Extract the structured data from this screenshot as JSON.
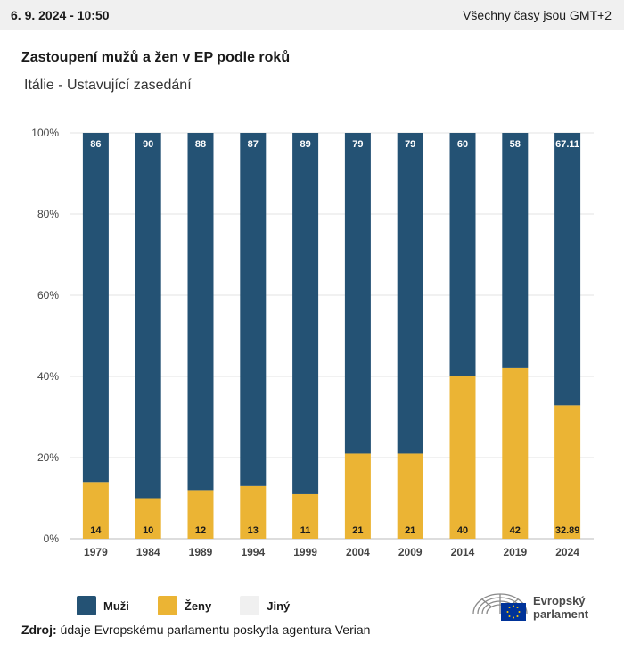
{
  "header": {
    "date": "6. 9. 2024 - 10:50",
    "timezone_note": "Všechny časy jsou GMT+2"
  },
  "title": "Zastoupení mužů a žen v EP podle roků",
  "subtitle": "Itálie - Ustavující zasedání",
  "chart_data": {
    "type": "bar",
    "stacked": true,
    "categories": [
      "1979",
      "1984",
      "1989",
      "1994",
      "1999",
      "2004",
      "2009",
      "2014",
      "2019",
      "2024"
    ],
    "series": [
      {
        "name": "Ženy",
        "color": "#ebb434",
        "values": [
          14,
          10,
          12,
          13,
          11,
          21,
          21,
          40,
          42,
          32.89
        ],
        "labels": [
          "14",
          "10",
          "12",
          "13",
          "11",
          "21",
          "21",
          "40",
          "42",
          "32.89"
        ]
      },
      {
        "name": "Muži",
        "color": "#245274",
        "values": [
          86,
          90,
          88,
          87,
          89,
          79,
          79,
          60,
          58,
          67.11
        ],
        "labels": [
          "86",
          "90",
          "88",
          "87",
          "89",
          "79",
          "79",
          "60",
          "58",
          "67.11"
        ]
      },
      {
        "name": "Jiný",
        "color": "#f0f0f0",
        "values": [
          0,
          0,
          0,
          0,
          0,
          0,
          0,
          0,
          0,
          0
        ]
      }
    ],
    "ylim": [
      0,
      100
    ],
    "yticks": [
      "0%",
      "20%",
      "40%",
      "60%",
      "80%",
      "100%"
    ],
    "grid": true,
    "legend_position": "bottom-left"
  },
  "legend": [
    {
      "label": "Muži",
      "color": "#245274"
    },
    {
      "label": "Ženy",
      "color": "#ebb434"
    },
    {
      "label": "Jiný",
      "color": "#f0f0f0"
    }
  ],
  "source": {
    "prefix": "Zdroj:",
    "text": "údaje Evropskému parlamentu poskytla agentura Verian"
  },
  "logo": {
    "line1": "Evropský",
    "line2": "parlament"
  }
}
